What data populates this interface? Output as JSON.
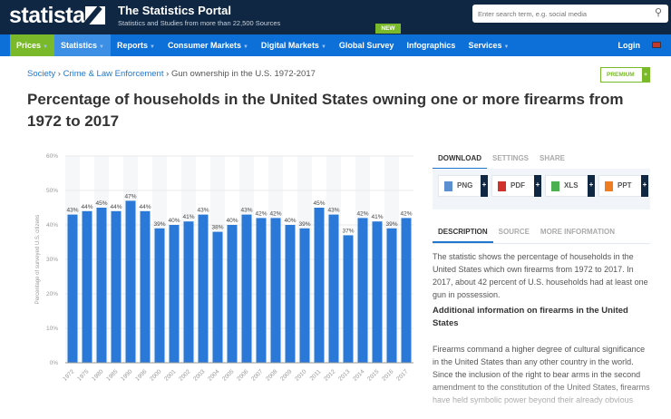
{
  "header": {
    "logo": "statista",
    "title": "The Statistics Portal",
    "subtitle": "Statistics and Studies from more than 22,500 Sources",
    "search_placeholder": "Enter search term, e.g. social media",
    "new_badge": "NEW"
  },
  "nav": {
    "items": [
      {
        "label": "Prices",
        "caret": true
      },
      {
        "label": "Statistics",
        "caret": true
      },
      {
        "label": "Reports",
        "caret": true
      },
      {
        "label": "Consumer Markets",
        "caret": true
      },
      {
        "label": "Digital Markets",
        "caret": true
      },
      {
        "label": "Global Survey",
        "caret": false
      },
      {
        "label": "Infographics",
        "caret": false
      },
      {
        "label": "Services",
        "caret": true
      }
    ],
    "login": "Login"
  },
  "breadcrumb": {
    "items": [
      "Society",
      "Crime & Law Enforcement"
    ],
    "current": "Gun ownership in the U.S. 1972-2017"
  },
  "premium": "PREMIUM",
  "page_title": "Percentage of households in the United States owning one or more firearms from 1972 to 2017",
  "chart_data": {
    "type": "bar",
    "title": "",
    "xlabel": "",
    "ylabel": "Percentage of surveyed U.S. citizens",
    "ylim": [
      0,
      60
    ],
    "yticks": [
      "0%",
      "10%",
      "20%",
      "30%",
      "40%",
      "50%",
      "60%"
    ],
    "grid": true,
    "bar_color": "#2a78d8",
    "categories": [
      "1972",
      "1975",
      "1980",
      "1985",
      "1990",
      "1996",
      "2000",
      "2001",
      "2002",
      "2003",
      "2004",
      "2005",
      "2006",
      "2007",
      "2008",
      "2009",
      "2010",
      "2011",
      "2012",
      "2013",
      "2014",
      "2015",
      "2016",
      "2017"
    ],
    "values": [
      43,
      44,
      45,
      44,
      47,
      44,
      39,
      40,
      41,
      43,
      38,
      40,
      43,
      42,
      42,
      40,
      39,
      45,
      43,
      37,
      42,
      41,
      39,
      42
    ],
    "labels": [
      "43%",
      "44%",
      "45%",
      "44%",
      "47%",
      "44%",
      "39%",
      "40%",
      "41%",
      "43%",
      "38%",
      "40%",
      "43%",
      "42%",
      "42%",
      "40%",
      "39%",
      "45%",
      "43%",
      "37%",
      "42%",
      "41%",
      "39%",
      "42%"
    ]
  },
  "download_tabs": [
    "DOWNLOAD",
    "SETTINGS",
    "SHARE"
  ],
  "download_buttons": [
    {
      "label": "PNG",
      "color": "#5b8fd0"
    },
    {
      "label": "PDF",
      "color": "#d0312d"
    },
    {
      "label": "XLS",
      "color": "#4caf50"
    },
    {
      "label": "PPT",
      "color": "#ef7d22"
    }
  ],
  "plus": "+",
  "info_tabs": [
    "DESCRIPTION",
    "SOURCE",
    "MORE INFORMATION"
  ],
  "description": {
    "p1": "The statistic shows the percentage of households in the United States which own firearms from 1972 to 2017. In 2017, about 42 percent of U.S. households had at least one gun in possession.",
    "heading": "Additional information on firearms in the United States",
    "p2": "Firearms command a higher degree of cultural significance in the United States than any other country in the world. Since the inclusion of the right to bear arms in the second amendment to the constitution of the United States, firearms have held symbolic power beyond their already obvious"
  }
}
